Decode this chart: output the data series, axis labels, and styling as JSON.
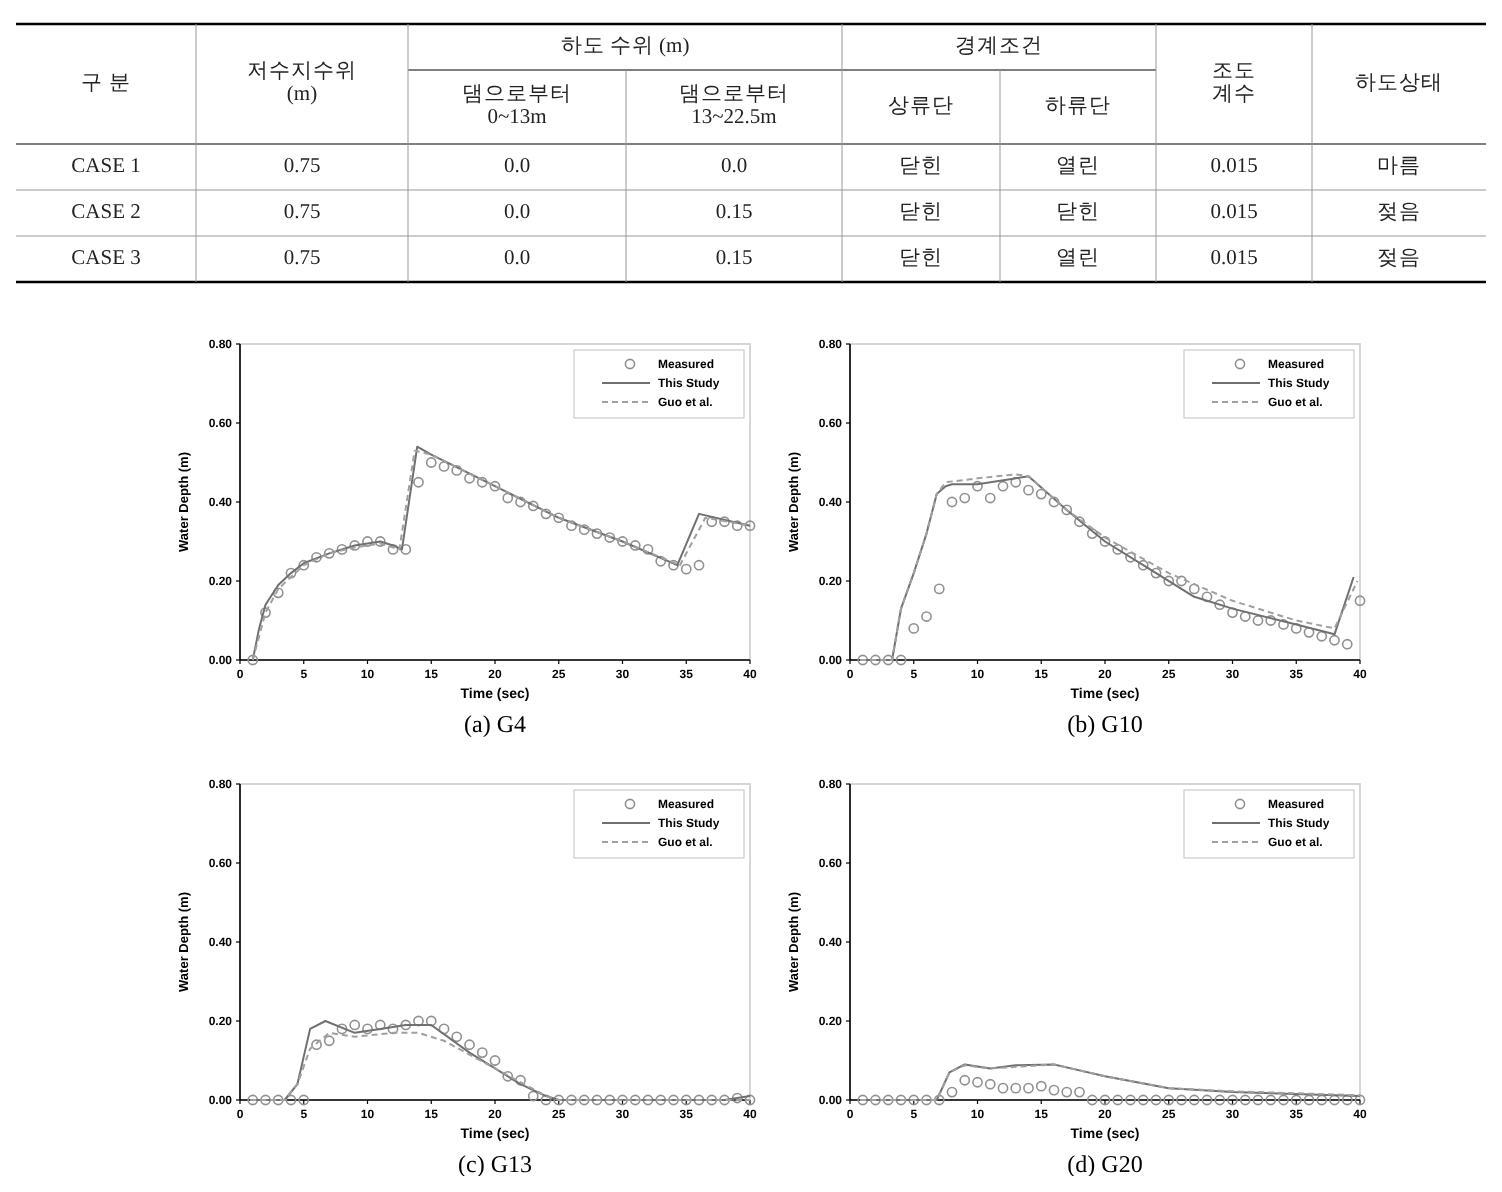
{
  "chart_data": [
    {
      "type": "other",
      "annotations": [
        "구 분",
        "저수지수위\n(m)",
        "하도 수위 (m)",
        "경계조건",
        "조도\n계수",
        "하도상태",
        "댐으로부터\n0~13m",
        "댐으로부터\n13~22.5m",
        "상류단",
        "하류단",
        "CASE 1",
        "0.75",
        "0.0",
        "0.0",
        "닫힌",
        "열린",
        "0.015",
        "마름",
        "CASE 2",
        "0.75",
        "0.0",
        "0.15",
        "닫힌",
        "닫힌",
        "0.015",
        "젖음",
        "CASE 3",
        "0.75",
        "0.0",
        "0.15",
        "닫힌",
        "열린",
        "0.015",
        "젖음"
      ]
    },
    {
      "type": "line",
      "title": "(a)  G4",
      "xlabel": "Time (sec)",
      "ylabel": "Water Depth (m)",
      "xlim": [
        0,
        40
      ],
      "ylim": [
        0,
        0.8
      ],
      "xticks": [
        0,
        5,
        10,
        15,
        20,
        25,
        30,
        35,
        40
      ],
      "yticks": [
        {
          "value": 0,
          "label": "0.00"
        },
        {
          "value": 0.2,
          "label": "0.20"
        },
        {
          "value": 0.4,
          "label": "0.40"
        },
        {
          "value": 0.6,
          "label": "0.60"
        },
        {
          "value": 0.8,
          "label": "0.80"
        }
      ],
      "legend": "top right",
      "series": [
        {
          "name": "Measured",
          "type": "scatter",
          "marker": "circle",
          "color": "#909090",
          "x": [
            1,
            2,
            3,
            4,
            5,
            6,
            7,
            8,
            9,
            10,
            11,
            12,
            13,
            14,
            15,
            16,
            17,
            18,
            19,
            20,
            21,
            22,
            23,
            24,
            25,
            26,
            27,
            28,
            29,
            30,
            31,
            32,
            33,
            34,
            35,
            36,
            37,
            38,
            39,
            40
          ],
          "values": [
            0,
            0.12,
            0.17,
            0.22,
            0.24,
            0.26,
            0.27,
            0.28,
            0.29,
            0.3,
            0.3,
            0.28,
            0.28,
            0.45,
            0.5,
            0.49,
            0.48,
            0.46,
            0.45,
            0.44,
            0.41,
            0.4,
            0.39,
            0.37,
            0.36,
            0.34,
            0.33,
            0.32,
            0.31,
            0.3,
            0.29,
            0.28,
            0.25,
            0.24,
            0.23,
            0.24,
            0.35,
            0.35,
            0.34,
            0.34
          ]
        },
        {
          "name": "This Study",
          "type": "line",
          "line_style": "solid",
          "color": "#707070",
          "x": [
            1,
            1.5,
            2,
            3,
            4,
            5,
            7,
            9,
            11,
            12,
            12.7,
            13.9,
            15,
            20,
            25,
            30,
            34.3,
            36,
            40
          ],
          "values": [
            0,
            0.08,
            0.14,
            0.19,
            0.22,
            0.245,
            0.27,
            0.29,
            0.3,
            0.29,
            0.28,
            0.54,
            0.52,
            0.44,
            0.36,
            0.3,
            0.24,
            0.37,
            0.34
          ]
        },
        {
          "name": "Guo et al.",
          "type": "line",
          "line_style": "dashed",
          "color": "#a0a0a0",
          "x": [
            1,
            2,
            3,
            5,
            7,
            9,
            11,
            12.5,
            13.7,
            15,
            20,
            25,
            30,
            34.5,
            36.5,
            40
          ],
          "values": [
            0,
            0.12,
            0.18,
            0.24,
            0.27,
            0.285,
            0.295,
            0.28,
            0.53,
            0.52,
            0.44,
            0.36,
            0.3,
            0.24,
            0.36,
            0.34
          ]
        }
      ]
    },
    {
      "type": "line",
      "title": "(b)  G10",
      "xlabel": "Time (sec)",
      "ylabel": "Water Depth (m)",
      "xlim": [
        0,
        40
      ],
      "ylim": [
        0,
        0.8
      ],
      "xticks": [
        0,
        5,
        10,
        15,
        20,
        25,
        30,
        35,
        40
      ],
      "yticks": [
        {
          "value": 0,
          "label": "0.00"
        },
        {
          "value": 0.2,
          "label": "0.20"
        },
        {
          "value": 0.4,
          "label": "0.40"
        },
        {
          "value": 0.6,
          "label": "0.60"
        },
        {
          "value": 0.8,
          "label": "0.80"
        }
      ],
      "legend": "top right",
      "series": [
        {
          "name": "Measured",
          "type": "scatter",
          "marker": "circle",
          "color": "#909090",
          "x": [
            1,
            2,
            3,
            4,
            5,
            6,
            7,
            8,
            9,
            10,
            11,
            12,
            13,
            14,
            15,
            16,
            17,
            18,
            19,
            20,
            21,
            22,
            23,
            24,
            25,
            26,
            27,
            28,
            29,
            30,
            31,
            32,
            33,
            34,
            35,
            36,
            37,
            38,
            39,
            40
          ],
          "values": [
            0,
            0,
            0,
            0,
            0.08,
            0.11,
            0.18,
            0.4,
            0.41,
            0.44,
            0.41,
            0.44,
            0.45,
            0.43,
            0.42,
            0.4,
            0.38,
            0.35,
            0.32,
            0.3,
            0.28,
            0.26,
            0.24,
            0.22,
            0.2,
            0.2,
            0.18,
            0.16,
            0.14,
            0.12,
            0.11,
            0.1,
            0.1,
            0.09,
            0.08,
            0.07,
            0.06,
            0.05,
            0.04,
            0.15
          ]
        },
        {
          "name": "This Study",
          "type": "line",
          "line_style": "solid",
          "color": "#707070",
          "x": [
            0.8,
            3.3,
            4,
            5,
            6,
            6.8,
            7.5,
            8,
            10,
            14,
            17,
            20,
            23,
            27,
            30,
            35,
            38,
            39.5
          ],
          "values": [
            0,
            0,
            0.13,
            0.22,
            0.32,
            0.42,
            0.44,
            0.445,
            0.445,
            0.465,
            0.38,
            0.3,
            0.24,
            0.16,
            0.13,
            0.09,
            0.065,
            0.21
          ]
        },
        {
          "name": "Guo et al.",
          "type": "line",
          "line_style": "dashed",
          "color": "#a0a0a0",
          "x": [
            0.8,
            3.3,
            4,
            5,
            6,
            6.8,
            7.5,
            10,
            13,
            14,
            17,
            20,
            25,
            30,
            35,
            38,
            39.8
          ],
          "values": [
            0,
            0,
            0.13,
            0.22,
            0.32,
            0.42,
            0.45,
            0.46,
            0.47,
            0.465,
            0.38,
            0.31,
            0.22,
            0.15,
            0.1,
            0.08,
            0.2
          ]
        }
      ]
    },
    {
      "type": "line",
      "title": "(c)  G13",
      "xlabel": "Time (sec)",
      "ylabel": "Water Depth (m)",
      "xlim": [
        0,
        40
      ],
      "ylim": [
        0,
        0.8
      ],
      "xticks": [
        0,
        5,
        10,
        15,
        20,
        25,
        30,
        35,
        40
      ],
      "yticks": [
        {
          "value": 0,
          "label": "0.00"
        },
        {
          "value": 0.2,
          "label": "0.20"
        },
        {
          "value": 0.4,
          "label": "0.40"
        },
        {
          "value": 0.6,
          "label": "0.60"
        },
        {
          "value": 0.8,
          "label": "0.80"
        }
      ],
      "legend": "top right",
      "series": [
        {
          "name": "Measured",
          "type": "scatter",
          "marker": "circle",
          "color": "#909090",
          "x": [
            1,
            2,
            3,
            4,
            5,
            6,
            7,
            8,
            9,
            10,
            11,
            12,
            13,
            14,
            15,
            16,
            17,
            18,
            19,
            20,
            21,
            22,
            23,
            24,
            25,
            26,
            27,
            28,
            29,
            30,
            31,
            32,
            33,
            34,
            35,
            36,
            37,
            38,
            39,
            40
          ],
          "values": [
            0,
            0,
            0,
            0,
            0,
            0.14,
            0.15,
            0.18,
            0.19,
            0.18,
            0.19,
            0.18,
            0.19,
            0.2,
            0.2,
            0.18,
            0.16,
            0.14,
            0.12,
            0.1,
            0.06,
            0.05,
            0.01,
            0,
            0,
            0,
            0,
            0,
            0,
            0,
            0,
            0,
            0,
            0,
            0,
            0,
            0,
            0,
            0.005,
            0
          ]
        },
        {
          "name": "This Study",
          "type": "line",
          "line_style": "solid",
          "color": "#707070",
          "x": [
            0.8,
            3.5,
            4.5,
            5.5,
            6.7,
            9,
            11,
            13,
            15,
            18,
            20,
            22,
            24,
            25,
            38,
            40
          ],
          "values": [
            0,
            0,
            0.04,
            0.18,
            0.2,
            0.17,
            0.18,
            0.19,
            0.19,
            0.12,
            0.08,
            0.04,
            0.01,
            0,
            0,
            0.01
          ]
        },
        {
          "name": "Guo et al.",
          "type": "line",
          "line_style": "dashed",
          "color": "#a0a0a0",
          "x": [
            0.8,
            3.5,
            4.5,
            5.5,
            7,
            9,
            12,
            14,
            16,
            20,
            24,
            25,
            40
          ],
          "values": [
            0,
            0,
            0.04,
            0.13,
            0.17,
            0.16,
            0.17,
            0.17,
            0.15,
            0.08,
            0.01,
            0,
            0
          ]
        }
      ]
    },
    {
      "type": "line",
      "title": "(d)  G20",
      "xlabel": "Time (sec)",
      "ylabel": "Water Depth (m)",
      "xlim": [
        0,
        40
      ],
      "ylim": [
        0,
        0.8
      ],
      "xticks": [
        0,
        5,
        10,
        15,
        20,
        25,
        30,
        35,
        40
      ],
      "yticks": [
        {
          "value": 0,
          "label": "0.00"
        },
        {
          "value": 0.2,
          "label": "0.20"
        },
        {
          "value": 0.4,
          "label": "0.40"
        },
        {
          "value": 0.6,
          "label": "0.60"
        },
        {
          "value": 0.8,
          "label": "0.80"
        }
      ],
      "legend": "top right",
      "series": [
        {
          "name": "Measured",
          "type": "scatter",
          "marker": "circle",
          "color": "#909090",
          "x": [
            1,
            2,
            3,
            4,
            5,
            6,
            7,
            8,
            9,
            10,
            11,
            12,
            13,
            14,
            15,
            16,
            17,
            18,
            19,
            20,
            21,
            22,
            23,
            24,
            25,
            26,
            27,
            28,
            29,
            30,
            31,
            32,
            33,
            34,
            35,
            36,
            37,
            38,
            39,
            40
          ],
          "values": [
            0,
            0,
            0,
            0,
            0,
            0,
            0,
            0.02,
            0.05,
            0.045,
            0.04,
            0.03,
            0.03,
            0.03,
            0.035,
            0.025,
            0.02,
            0.02,
            0,
            0,
            0,
            0,
            0,
            0,
            0,
            0,
            0,
            0,
            0,
            0,
            0,
            0,
            0,
            0,
            0,
            0,
            0,
            0,
            0,
            0
          ]
        },
        {
          "name": "This Study",
          "type": "line",
          "line_style": "solid",
          "color": "#707070",
          "x": [
            0.8,
            6.8,
            7.8,
            9,
            11,
            13,
            16,
            18,
            20,
            25,
            30,
            40
          ],
          "values": [
            0,
            0,
            0.07,
            0.09,
            0.08,
            0.088,
            0.09,
            0.075,
            0.06,
            0.03,
            0.02,
            0.01
          ]
        },
        {
          "name": "Guo et al.",
          "type": "line",
          "line_style": "dashed",
          "color": "#a0a0a0",
          "x": [
            0.8,
            6.8,
            7.8,
            9,
            11,
            16,
            20,
            25,
            30,
            40
          ],
          "values": [
            0,
            0,
            0.07,
            0.088,
            0.08,
            0.09,
            0.06,
            0.03,
            0.022,
            0.012
          ]
        }
      ]
    }
  ]
}
